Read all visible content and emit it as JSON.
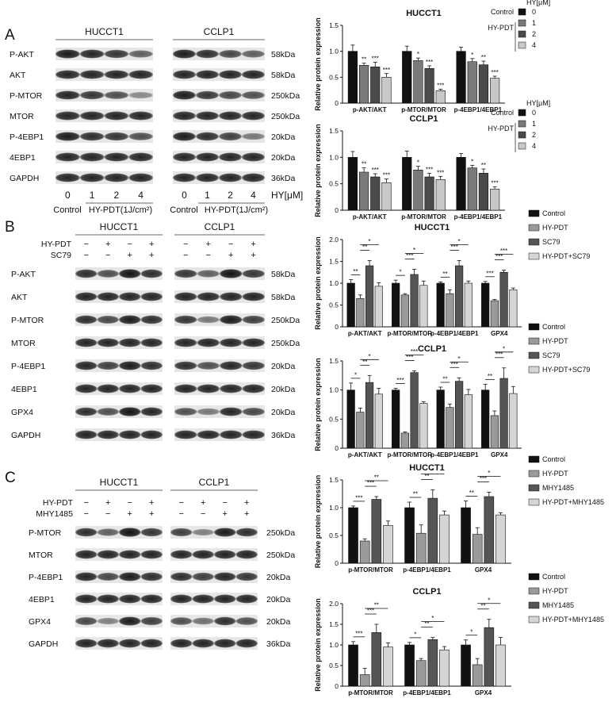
{
  "panel_letters": [
    "A",
    "B",
    "C"
  ],
  "panel_a": {
    "cell_lines": [
      "HUCCT1",
      "CCLP1"
    ],
    "proteins": [
      "P-AKT",
      "AKT",
      "P-MTOR",
      "MTOR",
      "P-4EBP1",
      "4EBP1",
      "GAPDH"
    ],
    "mw": [
      "58kDa",
      "58kDa",
      "250kDa",
      "250kDa",
      "20kDa",
      "20kDa",
      "36kDa"
    ],
    "doses": [
      "0",
      "1",
      "2",
      "4"
    ],
    "dose_unit": "HY[μM]",
    "group_labels": [
      "Control",
      "HY-PDT(1J/cm²)"
    ]
  },
  "panel_b": {
    "cell_lines": [
      "HUCCT1",
      "CCLP1"
    ],
    "treat_rows": [
      {
        "label": "HY-PDT",
        "signs": [
          "−",
          "+",
          "−",
          "+"
        ]
      },
      {
        "label": "SC79",
        "signs": [
          "−",
          "−",
          "+",
          "+"
        ]
      }
    ],
    "proteins": [
      "P-AKT",
      "AKT",
      "P-MTOR",
      "MTOR",
      "P-4EBP1",
      "4EBP1",
      "GPX4",
      "GAPDH"
    ],
    "mw": [
      "58kDa",
      "58kDa",
      "250kDa",
      "250kDa",
      "20kDa",
      "20kDa",
      "20kDa",
      "36kDa"
    ]
  },
  "panel_c": {
    "cell_lines": [
      "HUCCT1",
      "CCLP1"
    ],
    "treat_rows": [
      {
        "label": "HY-PDT",
        "signs": [
          "−",
          "+",
          "−",
          "+"
        ]
      },
      {
        "label": "MHY1485",
        "signs": [
          "−",
          "−",
          "+",
          "+"
        ]
      }
    ],
    "proteins": [
      "P-MTOR",
      "MTOR",
      "P-4EBP1",
      "4EBP1",
      "GPX4",
      "GAPDH"
    ],
    "mw": [
      "250kDa",
      "250kDa",
      "20kDa",
      "20kDa",
      "20kDa",
      "36kDa"
    ]
  },
  "legend_a": {
    "unit_title": "HY[μM]",
    "items": [
      {
        "group": "Control",
        "dose": "0",
        "color": "#111111"
      },
      {
        "group": "HY-PDT",
        "dose": "1",
        "color": "#7a7a7a"
      },
      {
        "group": "",
        "dose": "2",
        "color": "#4a4a4a"
      },
      {
        "group": "",
        "dose": "4",
        "color": "#c8c8c8"
      }
    ]
  },
  "legend_b": [
    {
      "label": "Control",
      "color": "#111111"
    },
    {
      "label": "HY-PDT",
      "color": "#9a9a9a"
    },
    {
      "label": "SC79",
      "color": "#555555"
    },
    {
      "label": "HY-PDT+SC79",
      "color": "#d5d5d5"
    }
  ],
  "legend_c": [
    {
      "label": "Control",
      "color": "#111111"
    },
    {
      "label": "HY-PDT",
      "color": "#9a9a9a"
    },
    {
      "label": "MHY1485",
      "color": "#555555"
    },
    {
      "label": "HY-PDT+MHY1485",
      "color": "#d5d5d5"
    }
  ],
  "chart_data": [
    {
      "type": "bar",
      "title": "HUCCT1",
      "ylabel": "Relative protein expression",
      "ylim": [
        0,
        1.5
      ],
      "yticks": [
        0,
        0.5,
        1.0,
        1.5
      ],
      "categories": [
        "p-AKT/AKT",
        "p-MTOR/MTOR",
        "p-4EBP1/4EBP1"
      ],
      "colors": [
        "#111111",
        "#7a7a7a",
        "#4a4a4a",
        "#c8c8c8"
      ],
      "values": [
        [
          1.0,
          0.73,
          0.7,
          0.5
        ],
        [
          1.0,
          0.82,
          0.67,
          0.24
        ],
        [
          1.0,
          0.8,
          0.74,
          0.48
        ]
      ],
      "errors": [
        [
          0.12,
          0.04,
          0.09,
          0.07
        ],
        [
          0.1,
          0.05,
          0.05,
          0.03
        ],
        [
          0.08,
          0.06,
          0.07,
          0.04
        ]
      ],
      "sig": [
        [
          "",
          "**",
          "***",
          "***"
        ],
        [
          "",
          "*",
          "***",
          "***"
        ],
        [
          "",
          "*",
          "**",
          "***"
        ]
      ],
      "brackets": []
    },
    {
      "type": "bar",
      "title": "CCLP1",
      "ylabel": "Relative protein expression",
      "ylim": [
        0,
        1.5
      ],
      "yticks": [
        0,
        0.5,
        1.0,
        1.5
      ],
      "categories": [
        "p-AKT/AKT",
        "p-MTOR/MTOR",
        "p-4EBP1/4EBP1"
      ],
      "colors": [
        "#111111",
        "#7a7a7a",
        "#4a4a4a",
        "#c8c8c8"
      ],
      "values": [
        [
          1.0,
          0.72,
          0.63,
          0.52
        ],
        [
          1.0,
          0.76,
          0.63,
          0.58
        ],
        [
          1.0,
          0.8,
          0.7,
          0.4
        ]
      ],
      "errors": [
        [
          0.11,
          0.08,
          0.06,
          0.07
        ],
        [
          0.12,
          0.07,
          0.07,
          0.06
        ],
        [
          0.07,
          0.05,
          0.08,
          0.04
        ]
      ],
      "sig": [
        [
          "",
          "**",
          "***",
          "***"
        ],
        [
          "",
          "*",
          "***",
          "***"
        ],
        [
          "",
          "*",
          "**",
          "***"
        ]
      ],
      "brackets": []
    },
    {
      "type": "bar",
      "title": "HUCCT1",
      "ylabel": "Relative protein expression",
      "ylim": [
        0,
        2.0
      ],
      "yticks": [
        0,
        0.5,
        1.0,
        1.5,
        2.0
      ],
      "categories": [
        "p-AKT/AKT",
        "p-MTOR/MTOR",
        "p-4EBP1/4EBP1",
        "GPX4"
      ],
      "colors": [
        "#111111",
        "#9a9a9a",
        "#555555",
        "#d5d5d5"
      ],
      "values": [
        [
          1.0,
          0.65,
          1.4,
          0.93
        ],
        [
          1.0,
          0.73,
          1.2,
          0.95
        ],
        [
          1.0,
          0.76,
          1.4,
          1.0
        ],
        [
          1.0,
          0.6,
          1.25,
          0.85
        ]
      ],
      "errors": [
        [
          0.08,
          0.08,
          0.12,
          0.08
        ],
        [
          0.07,
          0.03,
          0.12,
          0.1
        ],
        [
          0.03,
          0.09,
          0.12,
          0.05
        ],
        [
          0.04,
          0.03,
          0.05,
          0.04
        ]
      ],
      "sig": [],
      "brackets": [
        [
          [
            0,
            1,
            "**"
          ],
          [
            1,
            2,
            "**"
          ],
          [
            1,
            3,
            "*"
          ]
        ],
        [
          [
            0,
            1,
            "*"
          ],
          [
            1,
            2,
            "***"
          ],
          [
            1,
            3,
            "*"
          ]
        ],
        [
          [
            0,
            1,
            "**"
          ],
          [
            1,
            2,
            "***"
          ],
          [
            1,
            3,
            "*"
          ]
        ],
        [
          [
            0,
            1,
            "***"
          ],
          [
            1,
            2,
            "***"
          ],
          [
            1,
            3,
            "***"
          ]
        ]
      ]
    },
    {
      "type": "bar",
      "title": "CCLP1",
      "ylabel": "Relative protein expression",
      "ylim": [
        0,
        1.5
      ],
      "yticks": [
        0,
        0.5,
        1.0,
        1.5
      ],
      "categories": [
        "p-AKT/AKT",
        "p-MTOR/MTOR",
        "p-4EBP1/4EBP1",
        "GPX4"
      ],
      "colors": [
        "#111111",
        "#9a9a9a",
        "#555555",
        "#d5d5d5"
      ],
      "values": [
        [
          1.0,
          0.62,
          1.13,
          0.93
        ],
        [
          1.0,
          0.26,
          1.3,
          0.77
        ],
        [
          1.0,
          0.7,
          1.15,
          0.92
        ],
        [
          1.0,
          0.56,
          1.2,
          0.94
        ]
      ],
      "errors": [
        [
          0.12,
          0.07,
          0.12,
          0.1
        ],
        [
          0.03,
          0.02,
          0.03,
          0.03
        ],
        [
          0.05,
          0.06,
          0.06,
          0.09
        ],
        [
          0.1,
          0.08,
          0.18,
          0.12
        ]
      ],
      "sig": [],
      "brackets": [
        [
          [
            0,
            1,
            "*"
          ],
          [
            1,
            2,
            "**"
          ],
          [
            1,
            3,
            "*"
          ]
        ],
        [
          [
            0,
            1,
            "***"
          ],
          [
            1,
            2,
            "***"
          ],
          [
            1,
            3,
            "***"
          ]
        ],
        [
          [
            0,
            1,
            "**"
          ],
          [
            1,
            2,
            "***"
          ],
          [
            1,
            3,
            "*"
          ]
        ],
        [
          [
            0,
            1,
            "**"
          ],
          [
            1,
            2,
            "***"
          ],
          [
            1,
            3,
            "*"
          ]
        ]
      ]
    },
    {
      "type": "bar",
      "title": "HUCCT1",
      "ylabel": "Relative protein expression",
      "ylim": [
        0,
        1.5
      ],
      "yticks": [
        0,
        0.5,
        1.0,
        1.5
      ],
      "categories": [
        "p-MTOR/MTOR",
        "p-4EBP1/4EBP1",
        "GPX4"
      ],
      "colors": [
        "#111111",
        "#9a9a9a",
        "#555555",
        "#d5d5d5"
      ],
      "values": [
        [
          1.0,
          0.4,
          1.15,
          0.68
        ],
        [
          1.0,
          0.54,
          1.17,
          0.87
        ],
        [
          1.0,
          0.52,
          1.2,
          0.87
        ]
      ],
      "errors": [
        [
          0.03,
          0.04,
          0.05,
          0.08
        ],
        [
          0.1,
          0.15,
          0.15,
          0.07
        ],
        [
          0.12,
          0.12,
          0.08,
          0.04
        ]
      ],
      "sig": [],
      "brackets": [
        [
          [
            0,
            1,
            "***"
          ],
          [
            1,
            2,
            "***"
          ],
          [
            1,
            3,
            "**"
          ]
        ],
        [
          [
            0,
            1,
            "**"
          ],
          [
            1,
            2,
            "**"
          ],
          [
            1,
            3,
            "*"
          ]
        ],
        [
          [
            0,
            1,
            "**"
          ],
          [
            1,
            2,
            "***"
          ],
          [
            1,
            3,
            "*"
          ]
        ]
      ]
    },
    {
      "type": "bar",
      "title": "CCLP1",
      "ylabel": "Relative protein expression",
      "ylim": [
        0,
        2.0
      ],
      "yticks": [
        0,
        0.5,
        1.0,
        1.5,
        2.0
      ],
      "categories": [
        "p-MTOR/MTOR",
        "p-4EBP1/4EBP1",
        "GPX4"
      ],
      "colors": [
        "#111111",
        "#9a9a9a",
        "#555555",
        "#d5d5d5"
      ],
      "values": [
        [
          1.0,
          0.28,
          1.3,
          0.95
        ],
        [
          1.0,
          0.62,
          1.13,
          0.88
        ],
        [
          1.0,
          0.52,
          1.42,
          1.0
        ]
      ],
      "errors": [
        [
          0.08,
          0.15,
          0.2,
          0.1
        ],
        [
          0.06,
          0.05,
          0.05,
          0.08
        ],
        [
          0.12,
          0.15,
          0.2,
          0.18
        ]
      ],
      "sig": [],
      "brackets": [
        [
          [
            0,
            1,
            "***"
          ],
          [
            1,
            2,
            "***"
          ],
          [
            1,
            3,
            "**"
          ]
        ],
        [
          [
            0,
            1,
            "*"
          ],
          [
            1,
            2,
            "**"
          ],
          [
            1,
            3,
            "*"
          ]
        ],
        [
          [
            0,
            1,
            "*"
          ],
          [
            1,
            2,
            "**"
          ],
          [
            1,
            3,
            "*"
          ]
        ]
      ]
    }
  ]
}
